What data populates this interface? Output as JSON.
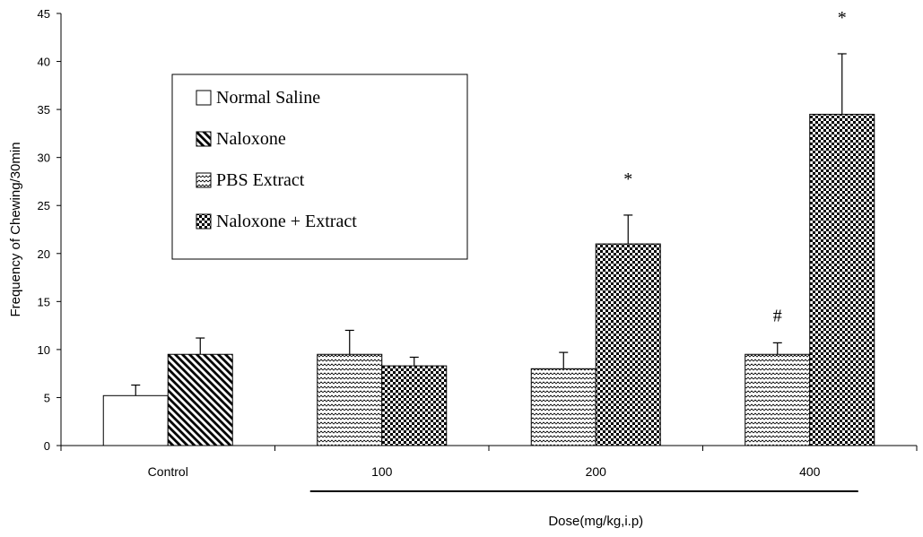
{
  "chart_data": {
    "type": "bar",
    "title": "",
    "xlabel": "Dose(mg/kg,i.p)",
    "ylabel": "Frequency of Chewing/30min",
    "ylim": [
      0,
      45
    ],
    "yticks": [
      0,
      5,
      10,
      15,
      20,
      25,
      30,
      35,
      40,
      45
    ],
    "categories": [
      "Control",
      "100",
      "200",
      "400"
    ],
    "legend_position": "upper-left",
    "series": [
      {
        "name": "Normal Saline",
        "pattern": "blank",
        "values": [
          5.2,
          null,
          null,
          null
        ],
        "errors": [
          1.1,
          null,
          null,
          null
        ]
      },
      {
        "name": "Naloxone",
        "pattern": "diagonal",
        "values": [
          9.5,
          null,
          null,
          null
        ],
        "errors": [
          1.7,
          null,
          null,
          null
        ]
      },
      {
        "name": "PBS Extract",
        "pattern": "wave",
        "values": [
          null,
          9.5,
          8.0,
          9.5
        ],
        "errors": [
          null,
          2.5,
          1.7,
          1.2
        ]
      },
      {
        "name": "Naloxone + Extract",
        "pattern": "check",
        "values": [
          null,
          8.3,
          21.0,
          34.5
        ],
        "errors": [
          null,
          0.9,
          3.0,
          6.3
        ]
      }
    ],
    "bars": [
      {
        "category": 0,
        "slot": 0,
        "series": 0
      },
      {
        "category": 0,
        "slot": 1,
        "series": 1
      },
      {
        "category": 1,
        "slot": 0,
        "series": 2
      },
      {
        "category": 1,
        "slot": 1,
        "series": 3
      },
      {
        "category": 2,
        "slot": 0,
        "series": 2
      },
      {
        "category": 2,
        "slot": 1,
        "series": 3
      },
      {
        "category": 3,
        "slot": 0,
        "series": 2
      },
      {
        "category": 3,
        "slot": 1,
        "series": 3
      }
    ],
    "annotations": [
      {
        "text": "*",
        "bar": 5
      },
      {
        "text": "#",
        "bar": 6
      },
      {
        "text": "*",
        "bar": 7
      }
    ],
    "dose_line_categories": [
      1,
      3
    ]
  }
}
